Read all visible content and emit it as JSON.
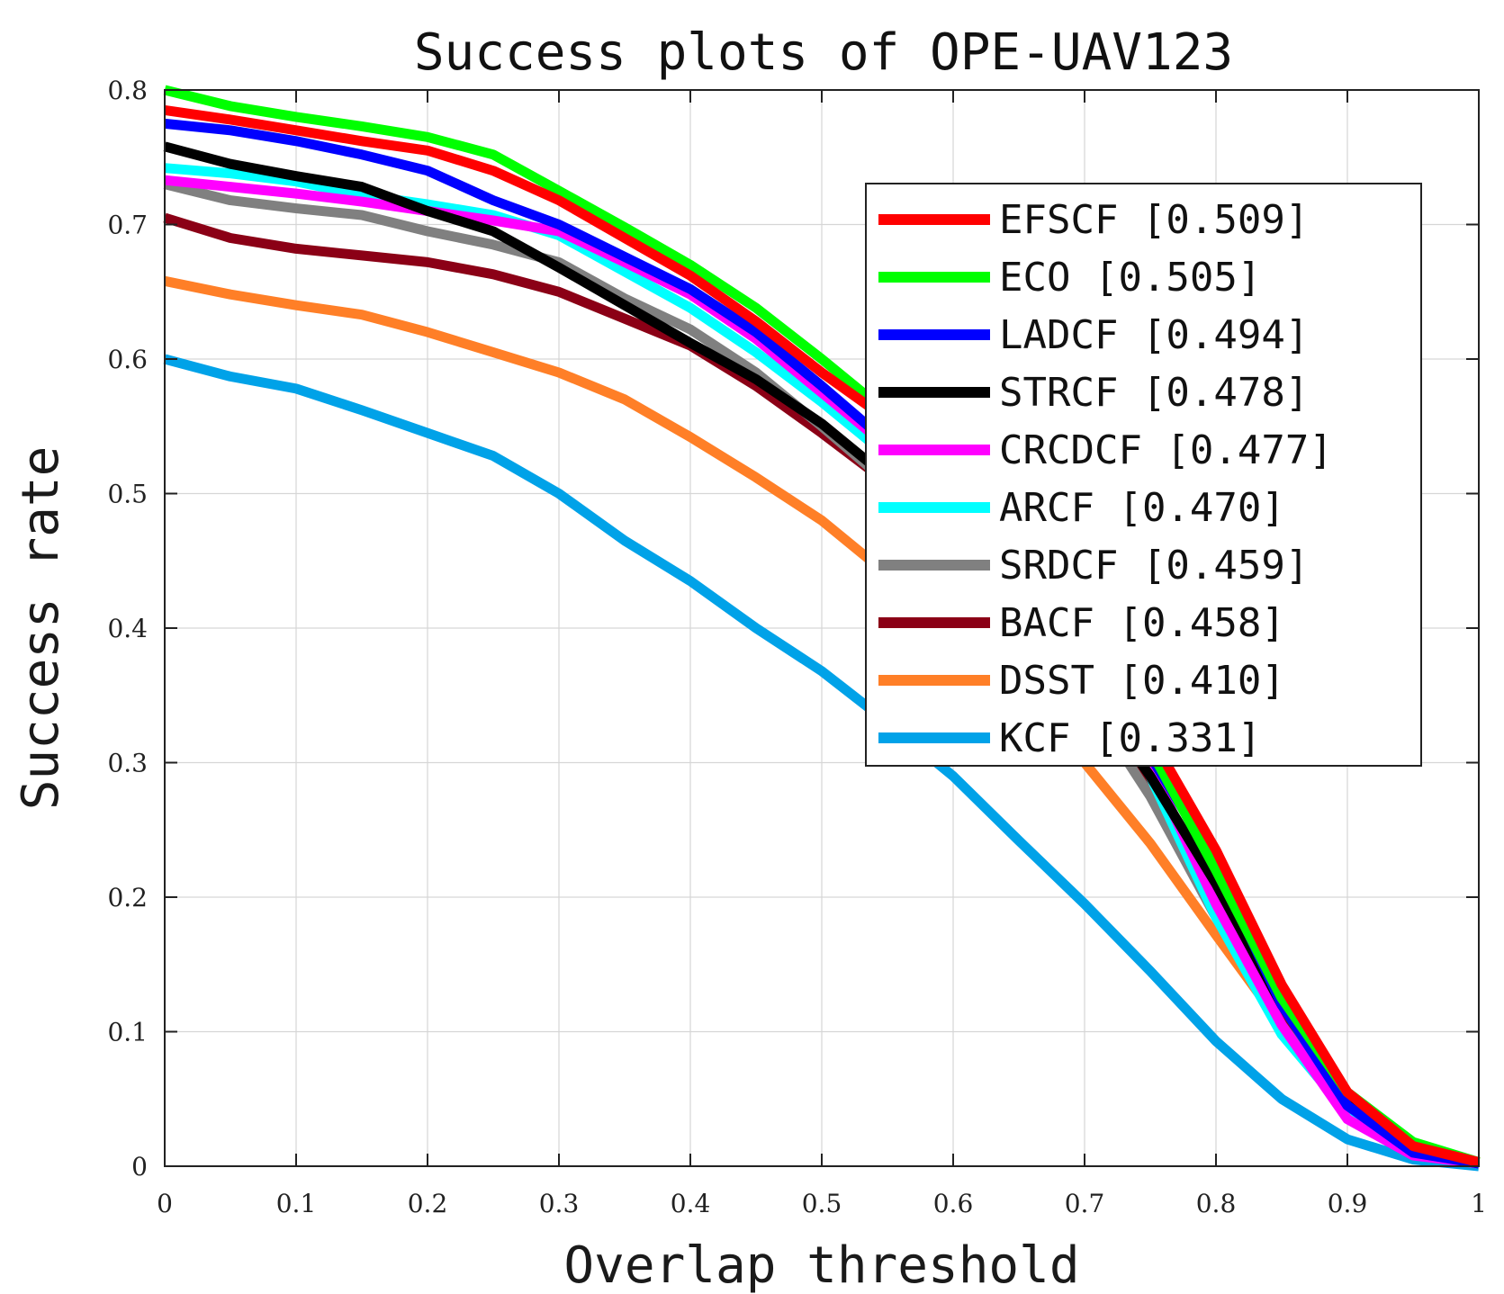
{
  "chart_data": {
    "type": "line",
    "title": "Success plots of  OPE-UAV123",
    "xlabel": "Overlap threshold",
    "ylabel": "Success rate",
    "xlim": [
      0,
      1
    ],
    "ylim": [
      0,
      0.8
    ],
    "grid": true,
    "legend_position": "top-right",
    "xticks": [
      0,
      0.1,
      0.2,
      0.3,
      0.4,
      0.5,
      0.6,
      0.7,
      0.8,
      0.9,
      1
    ],
    "xtick_labels": [
      "0",
      "0.1",
      "0.2",
      "0.3",
      "0.4",
      "0.5",
      "0.6",
      "0.7",
      "0.8",
      "0.9",
      "1"
    ],
    "yticks": [
      0,
      0.1,
      0.2,
      0.3,
      0.4,
      0.5,
      0.6,
      0.7,
      0.8
    ],
    "ytick_labels": [
      "0",
      "0.1",
      "0.2",
      "0.3",
      "0.4",
      "0.5",
      "0.6",
      "0.7",
      "0.8"
    ],
    "x": [
      0,
      0.05,
      0.1,
      0.15,
      0.2,
      0.25,
      0.3,
      0.35,
      0.4,
      0.45,
      0.5,
      0.55,
      0.6,
      0.65,
      0.7,
      0.75,
      0.8,
      0.85,
      0.9,
      0.95,
      1
    ],
    "series": [
      {
        "name": "EFSCF [0.509]",
        "color": "#ff0000",
        "values": [
          0.785,
          0.778,
          0.77,
          0.762,
          0.755,
          0.74,
          0.718,
          0.69,
          0.662,
          0.628,
          0.59,
          0.555,
          0.51,
          0.455,
          0.395,
          0.32,
          0.235,
          0.135,
          0.055,
          0.015,
          0.003
        ]
      },
      {
        "name": "ECO [0.505]",
        "color": "#00ff00",
        "values": [
          0.8,
          0.788,
          0.78,
          0.773,
          0.765,
          0.752,
          0.725,
          0.698,
          0.67,
          0.638,
          0.6,
          0.56,
          0.505,
          0.448,
          0.385,
          0.31,
          0.22,
          0.125,
          0.055,
          0.018,
          0.003
        ]
      },
      {
        "name": "LADCF [0.494]",
        "color": "#0000ff",
        "values": [
          0.775,
          0.77,
          0.762,
          0.752,
          0.74,
          0.718,
          0.7,
          0.676,
          0.652,
          0.62,
          0.58,
          0.538,
          0.49,
          0.435,
          0.375,
          0.305,
          0.225,
          0.12,
          0.045,
          0.01,
          0.002
        ]
      },
      {
        "name": "STRCF [0.478]",
        "color": "#000000",
        "values": [
          0.758,
          0.745,
          0.736,
          0.728,
          0.71,
          0.695,
          0.668,
          0.64,
          0.612,
          0.585,
          0.552,
          0.512,
          0.47,
          0.418,
          0.358,
          0.29,
          0.21,
          0.12,
          0.05,
          0.012,
          0.002
        ]
      },
      {
        "name": "CRCDCF [0.477]",
        "color": "#ff00ff",
        "values": [
          0.733,
          0.728,
          0.723,
          0.717,
          0.71,
          0.703,
          0.695,
          0.672,
          0.648,
          0.615,
          0.575,
          0.535,
          0.488,
          0.432,
          0.37,
          0.298,
          0.195,
          0.105,
          0.035,
          0.008,
          0.002
        ]
      },
      {
        "name": "ARCF [0.470]",
        "color": "#00ffff",
        "values": [
          0.742,
          0.738,
          0.732,
          0.722,
          0.715,
          0.707,
          0.692,
          0.665,
          0.638,
          0.605,
          0.568,
          0.528,
          0.48,
          0.425,
          0.365,
          0.29,
          0.185,
          0.098,
          0.04,
          0.01,
          0.002
        ]
      },
      {
        "name": "SRDCF [0.459]",
        "color": "#808080",
        "values": [
          0.73,
          0.718,
          0.712,
          0.707,
          0.695,
          0.685,
          0.672,
          0.645,
          0.622,
          0.59,
          0.55,
          0.508,
          0.465,
          0.41,
          0.35,
          0.275,
          0.185,
          0.105,
          0.04,
          0.01,
          0.002
        ]
      },
      {
        "name": "BACF [0.458]",
        "color": "#8b0016",
        "values": [
          0.705,
          0.69,
          0.682,
          0.677,
          0.672,
          0.663,
          0.65,
          0.63,
          0.61,
          0.58,
          0.545,
          0.508,
          0.465,
          0.412,
          0.352,
          0.285,
          0.2,
          0.11,
          0.04,
          0.01,
          0.002
        ]
      },
      {
        "name": "DSST [0.410]",
        "color": "#ff7f27",
        "values": [
          0.658,
          0.648,
          0.64,
          0.633,
          0.62,
          0.605,
          0.59,
          0.57,
          0.542,
          0.512,
          0.48,
          0.44,
          0.4,
          0.355,
          0.3,
          0.24,
          0.172,
          0.105,
          0.045,
          0.015,
          0.003
        ]
      },
      {
        "name": "KCF [0.331]",
        "color": "#00a2e8",
        "values": [
          0.6,
          0.587,
          0.578,
          0.562,
          0.545,
          0.528,
          0.5,
          0.465,
          0.435,
          0.4,
          0.368,
          0.33,
          0.29,
          0.242,
          0.195,
          0.145,
          0.093,
          0.05,
          0.02,
          0.005,
          0.0
        ]
      }
    ]
  }
}
